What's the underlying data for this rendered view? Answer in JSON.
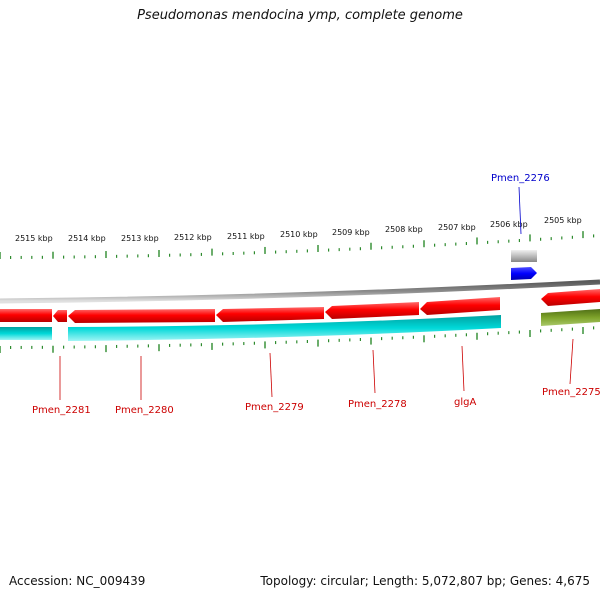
{
  "title": "Pseudomonas mendocina ymp, complete genome",
  "colors": {
    "forward_gene": "#ff0000",
    "reverse_gene": "#ff0000",
    "cds_track": "#00c8c8",
    "olive_track": "#6b8e23",
    "tick": "#2e8b2e",
    "backbone": "#8c8c8c",
    "label_red": "#cc0000",
    "label_blue": "#0000cc",
    "blue_feature": "#0000ff"
  },
  "ruler": {
    "labels": [
      "2515 kbp",
      "2514 kbp",
      "2513 kbp",
      "2512 kbp",
      "2511 kbp",
      "2510 kbp",
      "2509 kbp",
      "2508 kbp",
      "2507 kbp",
      "2506 kbp",
      "2505 kbp"
    ]
  },
  "genes": [
    {
      "label": "Pmen_2281",
      "color": "label_red"
    },
    {
      "label": "Pmen_2280",
      "color": "label_red"
    },
    {
      "label": "Pmen_2279",
      "color": "label_red"
    },
    {
      "label": "Pmen_2278",
      "color": "label_red"
    },
    {
      "label": "glgA",
      "color": "label_red"
    },
    {
      "label": "Pmen_2275",
      "color": "label_red"
    },
    {
      "label": "Pmen_2276",
      "color": "label_blue"
    }
  ],
  "footer": {
    "accession": "Accession: NC_009439",
    "summary": "Topology: circular; Length: 5,072,807 bp; Genes: 4,675"
  }
}
